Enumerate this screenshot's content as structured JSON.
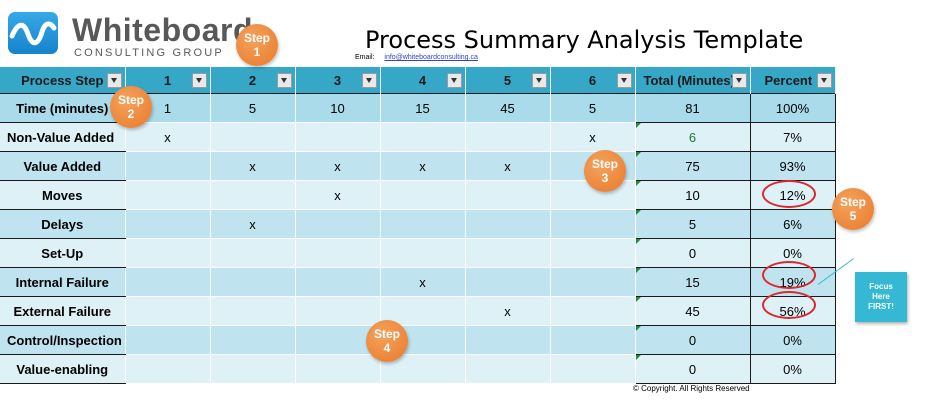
{
  "brand": {
    "name": "Whiteboard",
    "sub": "CONSULTING GROUP"
  },
  "title": "Process Summary Analysis Template",
  "email": {
    "label": "Email:",
    "value": "info@whiteboardconsulting.ca"
  },
  "table": {
    "headers": [
      "Process Step",
      "1",
      "2",
      "3",
      "4",
      "5",
      "6",
      "Total (Minutes)",
      "Percent"
    ],
    "rows": [
      {
        "label": "Time (minutes)",
        "cells": [
          "1",
          "5",
          "10",
          "15",
          "45",
          "5"
        ],
        "total": "81",
        "percent": "100%"
      },
      {
        "label": "Non-Value Added",
        "cells": [
          "x",
          "",
          "",
          "",
          "",
          "x"
        ],
        "total": "6",
        "percent": "7%"
      },
      {
        "label": "Value Added",
        "cells": [
          "",
          "x",
          "x",
          "x",
          "x",
          ""
        ],
        "total": "75",
        "percent": "93%"
      },
      {
        "label": "Moves",
        "cells": [
          "",
          "",
          "x",
          "",
          "",
          ""
        ],
        "total": "10",
        "percent": "12%"
      },
      {
        "label": "Delays",
        "cells": [
          "",
          "x",
          "",
          "",
          "",
          ""
        ],
        "total": "5",
        "percent": "6%"
      },
      {
        "label": "Set-Up",
        "cells": [
          "",
          "",
          "",
          "",
          "",
          ""
        ],
        "total": "0",
        "percent": "0%"
      },
      {
        "label": "Internal Failure",
        "cells": [
          "",
          "",
          "",
          "x",
          "",
          ""
        ],
        "total": "15",
        "percent": "19%"
      },
      {
        "label": "External Failure",
        "cells": [
          "",
          "",
          "",
          "",
          "x",
          ""
        ],
        "total": "45",
        "percent": "56%"
      },
      {
        "label": "Control/Inspection",
        "cells": [
          "",
          "",
          "",
          "",
          "",
          ""
        ],
        "total": "0",
        "percent": "0%"
      },
      {
        "label": "Value-enabling",
        "cells": [
          "",
          "",
          "",
          "",
          "",
          ""
        ],
        "total": "0",
        "percent": "0%"
      }
    ]
  },
  "steps": [
    {
      "line1": "Step",
      "line2": "1"
    },
    {
      "line1": "Step",
      "line2": "2"
    },
    {
      "line1": "Step",
      "line2": "3"
    },
    {
      "line1": "Step",
      "line2": "4"
    },
    {
      "line1": "Step",
      "line2": "5"
    }
  ],
  "callout": {
    "line1": "Focus",
    "line2": "Here",
    "line3": "FIRST!"
  },
  "copyright": "© Copyright. All Rights Reserved",
  "colors": {
    "header": "#36a7c6",
    "row_dark": "#bfe4ef",
    "row_light": "#ddf1f7",
    "step_bubble": "#e8792a",
    "highlight_ring": "#d9282f",
    "callout": "#34b8d4"
  }
}
